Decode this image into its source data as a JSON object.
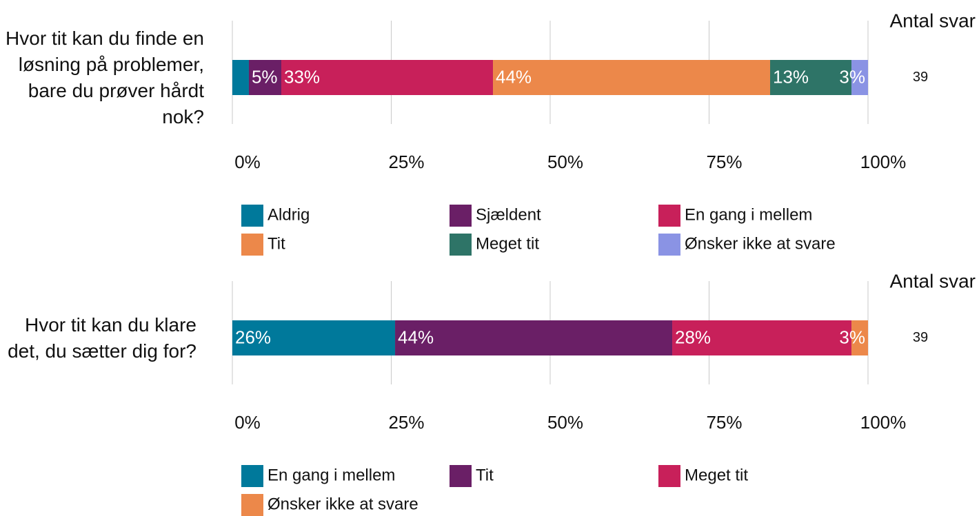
{
  "chart_data": [
    {
      "type": "bar",
      "orientation": "horizontal",
      "stacked": true,
      "categories": [
        "Hvor tit kan du finde en løsning på problemer, bare du prøver hårdt nok?"
      ],
      "count_header": "Antal svar",
      "counts": [
        39
      ],
      "xlim": [
        0,
        100
      ],
      "xticks": [
        {
          "value": 0,
          "label": "0%"
        },
        {
          "value": 25,
          "label": "25%"
        },
        {
          "value": 50,
          "label": "50%"
        },
        {
          "value": 75,
          "label": "75%"
        },
        {
          "value": 100,
          "label": "100%"
        }
      ],
      "grid": true,
      "series": [
        {
          "name": "Aldrig",
          "color": "#00799b",
          "values": [
            2.6
          ]
        },
        {
          "name": "Sjældent",
          "color": "#6a1f66",
          "values": [
            5.1
          ],
          "value_labels": [
            "5%"
          ]
        },
        {
          "name": "En gang i mellem",
          "color": "#c8205a",
          "values": [
            33.3
          ],
          "value_labels": [
            "33%"
          ]
        },
        {
          "name": "Tit",
          "color": "#ec884a",
          "values": [
            43.6
          ],
          "value_labels": [
            "44%"
          ]
        },
        {
          "name": "Meget tit",
          "color": "#2e7467",
          "values": [
            12.8
          ],
          "value_labels": [
            "13%"
          ]
        },
        {
          "name": "Ønsker ikke at svare",
          "color": "#8a93e4",
          "values": [
            2.6
          ],
          "value_labels": [
            "3%"
          ]
        }
      ]
    },
    {
      "type": "bar",
      "orientation": "horizontal",
      "stacked": true,
      "categories": [
        "Hvor tit kan du klare det, du sætter dig for?"
      ],
      "count_header": "Antal svar",
      "counts": [
        39
      ],
      "xlim": [
        0,
        100
      ],
      "xticks": [
        {
          "value": 0,
          "label": "0%"
        },
        {
          "value": 25,
          "label": "25%"
        },
        {
          "value": 50,
          "label": "50%"
        },
        {
          "value": 75,
          "label": "75%"
        },
        {
          "value": 100,
          "label": "100%"
        }
      ],
      "grid": true,
      "series": [
        {
          "name": "En gang i mellem",
          "color": "#00799b",
          "values": [
            25.6
          ],
          "value_labels": [
            "26%"
          ]
        },
        {
          "name": "Tit",
          "color": "#6a1f66",
          "values": [
            43.6
          ],
          "value_labels": [
            "44%"
          ]
        },
        {
          "name": "Meget tit",
          "color": "#c8205a",
          "values": [
            28.2
          ],
          "value_labels": [
            "28%"
          ]
        },
        {
          "name": "Ønsker ikke at svare",
          "color": "#ec884a",
          "values": [
            2.6
          ],
          "value_labels": [
            "3%"
          ]
        }
      ]
    }
  ]
}
